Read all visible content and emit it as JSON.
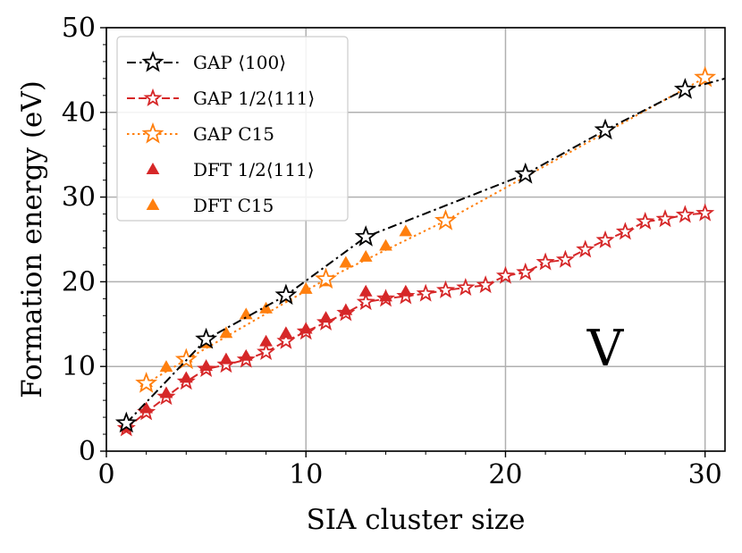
{
  "chart_data": {
    "type": "line",
    "xlabel": "SIA cluster size",
    "ylabel": "Formation energy (eV)",
    "xlim": [
      0,
      31
    ],
    "ylim": [
      0,
      50
    ],
    "xticks": [
      0,
      10,
      20,
      30
    ],
    "yticks": [
      0,
      10,
      20,
      30,
      40,
      50
    ],
    "xtick_labels": [
      "0",
      "10",
      "20",
      "30"
    ],
    "ytick_labels": [
      "0",
      "10",
      "20",
      "30",
      "40",
      "50"
    ],
    "grid": true,
    "legend_position": "top-left",
    "annotation": "V",
    "series": [
      {
        "name": "GAP ⟨100⟩",
        "color": "#000000",
        "linestyle": "dashdot",
        "marker": "star-open",
        "x": [
          1,
          5,
          9,
          13,
          21,
          25,
          29,
          31
        ],
        "y": [
          3.3,
          13.2,
          18.4,
          25.3,
          32.7,
          37.9,
          42.7,
          44.0
        ],
        "marker_mask": [
          true,
          true,
          true,
          true,
          true,
          true,
          true,
          false
        ]
      },
      {
        "name": "GAP 1/2⟨111⟩",
        "color": "#d62728",
        "linestyle": "dashed",
        "marker": "star-open",
        "x": [
          1,
          2,
          3,
          4,
          5,
          6,
          7,
          8,
          9,
          10,
          11,
          12,
          13,
          14,
          15,
          16,
          17,
          18,
          19,
          20,
          21,
          22,
          23,
          24,
          25,
          26,
          27,
          28,
          29,
          30
        ],
        "y": [
          2.7,
          4.6,
          6.4,
          8.2,
          9.7,
          10.2,
          10.8,
          11.7,
          13.0,
          14.1,
          15.2,
          16.3,
          17.6,
          18.0,
          18.3,
          18.6,
          19.0,
          19.3,
          19.6,
          20.7,
          21.1,
          22.3,
          22.6,
          23.8,
          24.9,
          25.9,
          27.1,
          27.4,
          27.9,
          28.1
        ]
      },
      {
        "name": "GAP C15",
        "color": "#ff7f0e",
        "linestyle": "dotted",
        "marker": "star-open",
        "x": [
          2,
          4,
          11,
          17,
          30
        ],
        "y": [
          8.0,
          10.8,
          20.3,
          27.2,
          44.1
        ]
      },
      {
        "name": "DFT 1/2⟨111⟩",
        "color": "#d62728",
        "linestyle": "none",
        "marker": "triangle",
        "x": [
          1,
          2,
          3,
          4,
          5,
          6,
          7,
          8,
          9,
          10,
          11,
          12,
          13,
          14,
          15
        ],
        "y": [
          2.8,
          5.0,
          6.8,
          8.6,
          10.0,
          10.8,
          11.2,
          12.9,
          13.9,
          14.4,
          15.7,
          16.6,
          18.8,
          18.2,
          18.8
        ]
      },
      {
        "name": "DFT C15",
        "color": "#ff7f0e",
        "linestyle": "none",
        "marker": "triangle",
        "x": [
          2,
          3,
          4,
          5,
          6,
          7,
          8,
          9,
          10,
          11,
          12,
          13,
          14,
          15
        ],
        "y": [
          8.1,
          9.9,
          11.0,
          12.7,
          13.9,
          16.1,
          16.8,
          18.2,
          19.1,
          20.0,
          22.2,
          22.9,
          24.2,
          25.9
        ]
      }
    ]
  }
}
